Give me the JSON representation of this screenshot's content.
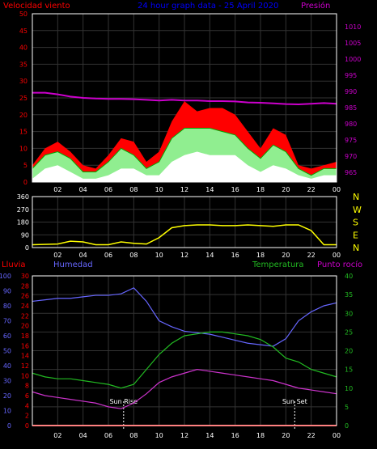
{
  "title": "24 hour graph data - 25 April 2020",
  "colors": {
    "background": "#000000",
    "frame": "#ffffff",
    "grid": "#333333",
    "wind_title": "#ff0000",
    "pressure": "#cc00cc",
    "wind_gust": "#ff0000",
    "wind_avg": "#90ee90",
    "wind_speed": "#ffffff",
    "wind_dir": "#ffff00",
    "humidity": "#6666ff",
    "temperature": "#22bb22",
    "dewpoint": "#cc33cc",
    "rain": "#ff0000",
    "tick_text": "#ffffff",
    "title": "#0000ff"
  },
  "chart_data": [
    {
      "type": "area",
      "id": "wind_pressure",
      "title": "24 hour graph data - 25 April 2020",
      "left_axis": {
        "label": "Velocidad viento",
        "range": [
          0,
          50
        ],
        "ticks": [
          0,
          5,
          10,
          15,
          20,
          25,
          30,
          35,
          40,
          45,
          50
        ]
      },
      "right_axis": {
        "label": "Presión",
        "range": [
          962,
          1014
        ],
        "ticks": [
          965,
          970,
          975,
          980,
          985,
          990,
          995,
          1000,
          1005,
          1010
        ]
      },
      "x_ticks": [
        "02",
        "04",
        "06",
        "08",
        "10",
        "12",
        "14",
        "16",
        "18",
        "20",
        "22",
        "00"
      ],
      "hours": [
        0,
        1,
        2,
        3,
        4,
        5,
        6,
        7,
        8,
        9,
        10,
        11,
        12,
        13,
        14,
        15,
        16,
        17,
        18,
        19,
        20,
        21,
        22,
        23,
        24
      ],
      "series": [
        {
          "key": "gust",
          "values": [
            5,
            10,
            12,
            9,
            5,
            4,
            8,
            13,
            12,
            6,
            9,
            18,
            24,
            21,
            22,
            22,
            20,
            15,
            10,
            16,
            14,
            5,
            4,
            5,
            6
          ]
        },
        {
          "key": "average",
          "values": [
            4,
            8,
            9,
            7,
            3,
            3,
            6,
            10,
            8,
            4,
            6,
            13,
            16,
            16,
            16,
            15,
            14,
            10,
            7,
            11,
            9,
            4,
            2,
            4,
            4
          ]
        },
        {
          "key": "speed",
          "values": [
            1,
            4,
            5,
            3,
            1,
            1,
            2,
            4,
            4,
            2,
            2,
            6,
            8,
            9,
            8,
            8,
            8,
            5,
            3,
            5,
            4,
            2,
            1,
            2,
            2
          ]
        },
        {
          "key": "pressure",
          "values": [
            989.6,
            989.6,
            989.1,
            988.4,
            988.0,
            987.8,
            987.7,
            987.7,
            987.6,
            987.4,
            987.2,
            987.4,
            987.2,
            987.2,
            987.0,
            987.0,
            986.9,
            986.6,
            986.5,
            986.3,
            986.1,
            986.0,
            986.2,
            986.4,
            986.2
          ]
        }
      ]
    },
    {
      "type": "line",
      "id": "wind_direction",
      "left_axis": {
        "range": [
          0,
          360
        ],
        "ticks": [
          0,
          90,
          180,
          270,
          360
        ]
      },
      "right_axis_labels": [
        "N",
        "W",
        "S",
        "E",
        "N"
      ],
      "x_ticks": [
        "02",
        "04",
        "06",
        "08",
        "10",
        "12",
        "14",
        "16",
        "18",
        "20",
        "22",
        "00"
      ],
      "hours": [
        0,
        2,
        3,
        4,
        5,
        6,
        7,
        8,
        9,
        10,
        11,
        12,
        13,
        14,
        15,
        16,
        17,
        18,
        19,
        20,
        21,
        22,
        23,
        24
      ],
      "series": [
        {
          "key": "direction",
          "values": [
            20,
            25,
            45,
            40,
            20,
            20,
            40,
            30,
            25,
            70,
            140,
            155,
            160,
            160,
            155,
            155,
            160,
            155,
            150,
            160,
            160,
            120,
            20,
            20
          ]
        }
      ]
    },
    {
      "type": "line",
      "id": "temperature_humidity",
      "labels": {
        "rain": "Lluvia",
        "humidity": "Humedad",
        "temperature": "Temperatura",
        "dewpoint": "Punto rocío"
      },
      "humidity_axis": {
        "range": [
          0,
          100
        ],
        "ticks": [
          0,
          10,
          20,
          30,
          40,
          50,
          60,
          70,
          80,
          90,
          100
        ]
      },
      "rain_axis": {
        "range": [
          0,
          30
        ],
        "ticks": [
          0,
          2,
          4,
          6,
          8,
          10,
          12,
          14,
          16,
          18,
          20,
          22,
          24,
          26,
          28,
          30
        ]
      },
      "temp_axis": {
        "range": [
          0,
          40
        ],
        "ticks": [
          0,
          5,
          10,
          15,
          20,
          25,
          30,
          35,
          40
        ]
      },
      "x_ticks": [
        "02",
        "04",
        "06",
        "08",
        "10",
        "12",
        "14",
        "16",
        "18",
        "20",
        "22",
        "00"
      ],
      "annotations": [
        {
          "label": "Sun Rise",
          "hour": 7.2
        },
        {
          "label": "Sun Set",
          "hour": 20.7
        }
      ],
      "hours": [
        0,
        1,
        2,
        3,
        4,
        5,
        6,
        7,
        8,
        9,
        10,
        11,
        12,
        13,
        14,
        15,
        16,
        17,
        18,
        19,
        20,
        21,
        22,
        23,
        24
      ],
      "series": [
        {
          "key": "humidity",
          "values": [
            83,
            84,
            85,
            85,
            86,
            87,
            87,
            88,
            92,
            83,
            70,
            66,
            63,
            62,
            61,
            59,
            57,
            55,
            54,
            53,
            58,
            70,
            76,
            80,
            82
          ]
        },
        {
          "key": "temperature",
          "values": [
            14,
            13,
            12.5,
            12.5,
            12,
            11.5,
            11,
            10,
            11,
            15,
            19,
            22,
            24,
            24.5,
            25,
            25,
            24.5,
            24,
            23,
            21,
            18,
            17,
            15,
            14,
            13
          ]
        },
        {
          "key": "dewpoint",
          "values": [
            9,
            8,
            7.5,
            7,
            6.5,
            6,
            5,
            4.5,
            6,
            8.5,
            11.5,
            13,
            14,
            15,
            14.5,
            14,
            13.5,
            13,
            12.5,
            12,
            11,
            10,
            9.5,
            9,
            8.5
          ]
        },
        {
          "key": "rain",
          "values": [
            0,
            0,
            0,
            0,
            0,
            0,
            0,
            0,
            0,
            0,
            0,
            0,
            0,
            0,
            0,
            0,
            0,
            0,
            0,
            0,
            0,
            0,
            0,
            0,
            0
          ]
        }
      ]
    }
  ]
}
